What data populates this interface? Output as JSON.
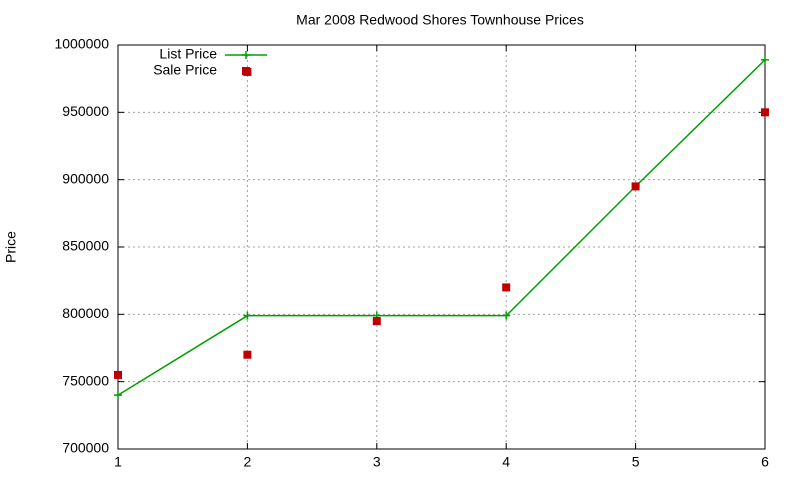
{
  "chart_data": {
    "type": "line",
    "title": "Mar 2008 Redwood Shores Townhouse Prices",
    "ylabel": "Price",
    "xlim": [
      1,
      6
    ],
    "xticks": [
      1,
      2,
      3,
      4,
      5,
      6
    ],
    "ylim": [
      700000,
      1000000
    ],
    "yticks": [
      700000,
      750000,
      800000,
      850000,
      900000,
      950000,
      1000000
    ],
    "grid": true,
    "legend": "top-left",
    "series": [
      {
        "name": "List Price",
        "color": "#00a000",
        "style": "linespoints",
        "x": [
          1,
          2,
          3,
          4,
          5,
          6
        ],
        "values": [
          740000,
          799000,
          799000,
          799000,
          895000,
          989000
        ]
      },
      {
        "name": "Sale Price",
        "color": "#c00000",
        "style": "points",
        "x": [
          1,
          2,
          2,
          3,
          4,
          5,
          6
        ],
        "values": [
          755000,
          980000,
          770000,
          795000,
          820000,
          895000,
          950000
        ]
      }
    ]
  }
}
